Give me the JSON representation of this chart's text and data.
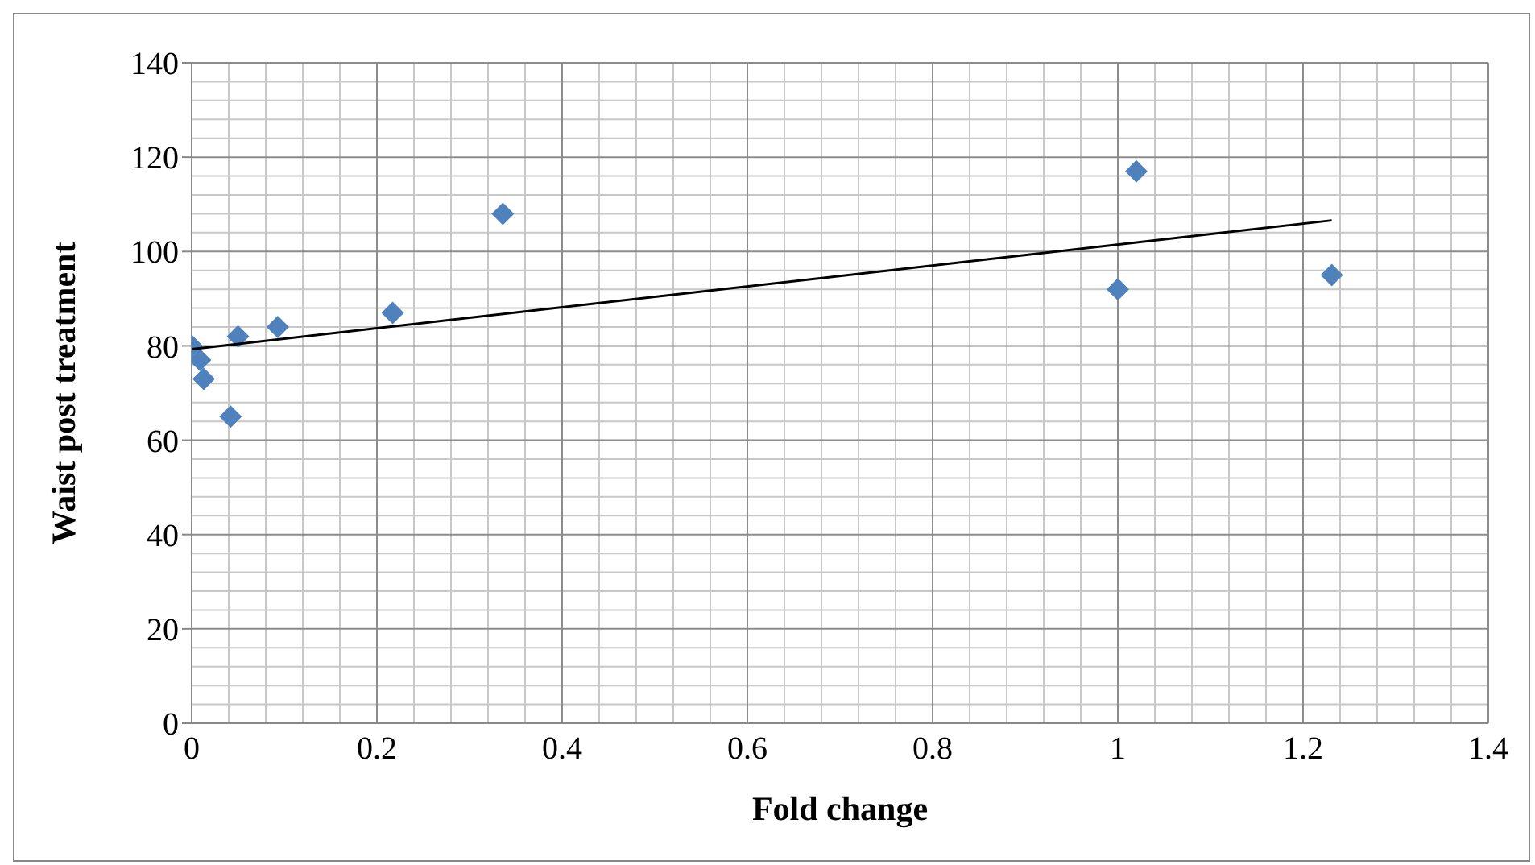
{
  "chart_data": {
    "type": "scatter",
    "xlabel": "Fold change",
    "ylabel": "Waist post treatment",
    "marker": "diamond",
    "grid": true,
    "legend": false,
    "xlim": [
      0,
      1.4
    ],
    "xticks": [
      0,
      0.2,
      0.4,
      0.6,
      0.8,
      1,
      1.2,
      1.4
    ],
    "ylim": [
      0,
      140
    ],
    "yticks": [
      0,
      20,
      40,
      60,
      80,
      100,
      120,
      140
    ],
    "series": [
      {
        "color": "#4f81bd",
        "x": [
          0,
          0.009,
          0.013,
          0.042,
          0.05,
          0.093,
          0.217,
          0.336,
          1.02,
          1.0,
          1.231
        ],
        "values": [
          80,
          77,
          73,
          65,
          82,
          84,
          87,
          108,
          117,
          92,
          95
        ]
      },
      {
        "type": "line",
        "marker": "none",
        "color": "#000000",
        "x": [
          0,
          1.231
        ],
        "values": [
          79.3,
          106.6
        ]
      }
    ]
  }
}
